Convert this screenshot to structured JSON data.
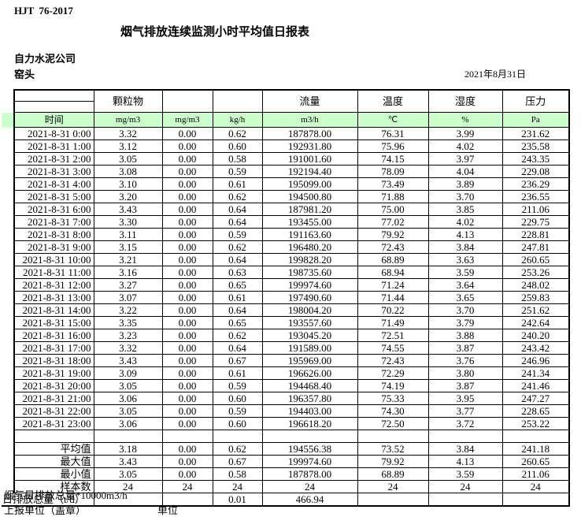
{
  "page": {
    "standard": "HJT  76-2017",
    "title": "烟气排放连续监测小时平均值日报表",
    "company": "自力水泥公司",
    "station": "窑头",
    "date": "2021年8月31日"
  },
  "table": {
    "group_headers": [
      "",
      "颗粒物",
      "",
      "",
      "流量",
      "温度",
      "湿度",
      "压力"
    ],
    "unit_row": [
      "时间",
      "mg/m3",
      "mg/m3",
      "kg/h",
      "m3/h",
      "℃",
      "%",
      "Pa"
    ],
    "columns": [
      "time",
      "pm-mgm3",
      "pm-mgm3-2",
      "pm-kgh",
      "flow",
      "temp",
      "humidity",
      "pressure"
    ],
    "rows": [
      {
        "time": "2021-8-31 0:00",
        "values": [
          "3.32",
          "0.00",
          "0.62",
          "187878.00",
          "76.31",
          "3.99",
          "231.62"
        ]
      },
      {
        "time": "2021-8-31 1:00",
        "values": [
          "3.12",
          "0.00",
          "0.60",
          "192931.80",
          "75.96",
          "4.02",
          "235.58"
        ]
      },
      {
        "time": "2021-8-31 2:00",
        "values": [
          "3.05",
          "0.00",
          "0.58",
          "191001.60",
          "74.15",
          "3.97",
          "243.35"
        ]
      },
      {
        "time": "2021-8-31 3:00",
        "values": [
          "3.08",
          "0.00",
          "0.59",
          "192194.40",
          "78.09",
          "4.04",
          "229.08"
        ]
      },
      {
        "time": "2021-8-31 4:00",
        "values": [
          "3.10",
          "0.00",
          "0.61",
          "195099.00",
          "73.49",
          "3.89",
          "236.29"
        ]
      },
      {
        "time": "2021-8-31 5:00",
        "values": [
          "3.20",
          "0.00",
          "0.62",
          "194500.80",
          "71.88",
          "3.70",
          "236.55"
        ]
      },
      {
        "time": "2021-8-31 6:00",
        "values": [
          "3.43",
          "0.00",
          "0.64",
          "187981.20",
          "75.00",
          "3.85",
          "211.06"
        ]
      },
      {
        "time": "2021-8-31 7:00",
        "values": [
          "3.30",
          "0.00",
          "0.64",
          "193455.00",
          "77.02",
          "4.02",
          "229.75"
        ]
      },
      {
        "time": "2021-8-31 8:00",
        "values": [
          "3.11",
          "0.00",
          "0.59",
          "191163.60",
          "79.92",
          "4.13",
          "228.81"
        ]
      },
      {
        "time": "2021-8-31 9:00",
        "values": [
          "3.15",
          "0.00",
          "0.62",
          "196480.20",
          "72.43",
          "3.84",
          "247.81"
        ]
      },
      {
        "time": "2021-8-31 10:00",
        "values": [
          "3.21",
          "0.00",
          "0.64",
          "199828.20",
          "68.89",
          "3.63",
          "260.65"
        ]
      },
      {
        "time": "2021-8-31 11:00",
        "values": [
          "3.16",
          "0.00",
          "0.63",
          "198735.60",
          "68.94",
          "3.59",
          "253.26"
        ]
      },
      {
        "time": "2021-8-31 12:00",
        "values": [
          "3.27",
          "0.00",
          "0.65",
          "199974.60",
          "71.24",
          "3.64",
          "248.02"
        ]
      },
      {
        "time": "2021-8-31 13:00",
        "values": [
          "3.07",
          "0.00",
          "0.61",
          "197490.60",
          "71.44",
          "3.65",
          "259.83"
        ]
      },
      {
        "time": "2021-8-31 14:00",
        "values": [
          "3.22",
          "0.00",
          "0.64",
          "198004.20",
          "70.22",
          "3.70",
          "251.62"
        ]
      },
      {
        "time": "2021-8-31 15:00",
        "values": [
          "3.35",
          "0.00",
          "0.65",
          "193557.60",
          "71.49",
          "3.79",
          "242.64"
        ]
      },
      {
        "time": "2021-8-31 16:00",
        "values": [
          "3.23",
          "0.00",
          "0.62",
          "193045.20",
          "72.51",
          "3.88",
          "240.20"
        ]
      },
      {
        "time": "2021-8-31 17:00",
        "values": [
          "3.32",
          "0.00",
          "0.64",
          "191589.00",
          "74.55",
          "3.87",
          "243.42"
        ]
      },
      {
        "time": "2021-8-31 18:00",
        "values": [
          "3.43",
          "0.00",
          "0.67",
          "195969.00",
          "72.43",
          "3.76",
          "246.96"
        ]
      },
      {
        "time": "2021-8-31 19:00",
        "values": [
          "3.09",
          "0.00",
          "0.61",
          "196626.00",
          "72.29",
          "3.80",
          "241.34"
        ]
      },
      {
        "time": "2021-8-31 20:00",
        "values": [
          "3.05",
          "0.00",
          "0.59",
          "194468.40",
          "74.19",
          "3.87",
          "241.46"
        ]
      },
      {
        "time": "2021-8-31 21:00",
        "values": [
          "3.06",
          "0.00",
          "0.60",
          "196357.80",
          "75.33",
          "3.95",
          "247.27"
        ]
      },
      {
        "time": "2021-8-31 22:00",
        "values": [
          "3.05",
          "0.00",
          "0.59",
          "194403.00",
          "74.30",
          "3.77",
          "228.65"
        ]
      },
      {
        "time": "2021-8-31 23:00",
        "values": [
          "3.06",
          "0.00",
          "0.60",
          "196618.20",
          "72.50",
          "3.72",
          "253.22"
        ]
      }
    ],
    "summary": [
      {
        "label": "平均值",
        "values": [
          "3.18",
          "0.00",
          "0.62",
          "194556.38",
          "73.52",
          "3.84",
          "241.18"
        ]
      },
      {
        "label": "最大值",
        "values": [
          "3.43",
          "0.00",
          "0.67",
          "199974.60",
          "79.92",
          "4.13",
          "260.65"
        ]
      },
      {
        "label": "最小值",
        "values": [
          "3.05",
          "0.00",
          "0.58",
          "187878.00",
          "68.89",
          "3.59",
          "211.06"
        ]
      },
      {
        "label": "样本数",
        "values": [
          "24",
          "24",
          "24",
          "24",
          "24",
          "24",
          "24"
        ]
      }
    ],
    "total_row": {
      "label": "日排放总量（t/d）",
      "values": [
        "",
        "",
        "0.01",
        "466.94",
        "",
        "",
        ""
      ]
    }
  },
  "footer": {
    "note": "烟气日排放总量*10000m3/h",
    "report_unit_label": "上报单位（盖章）",
    "unit_label": "单位"
  },
  "colors": {
    "header_green": "#ccffcc",
    "border": "#000000"
  }
}
